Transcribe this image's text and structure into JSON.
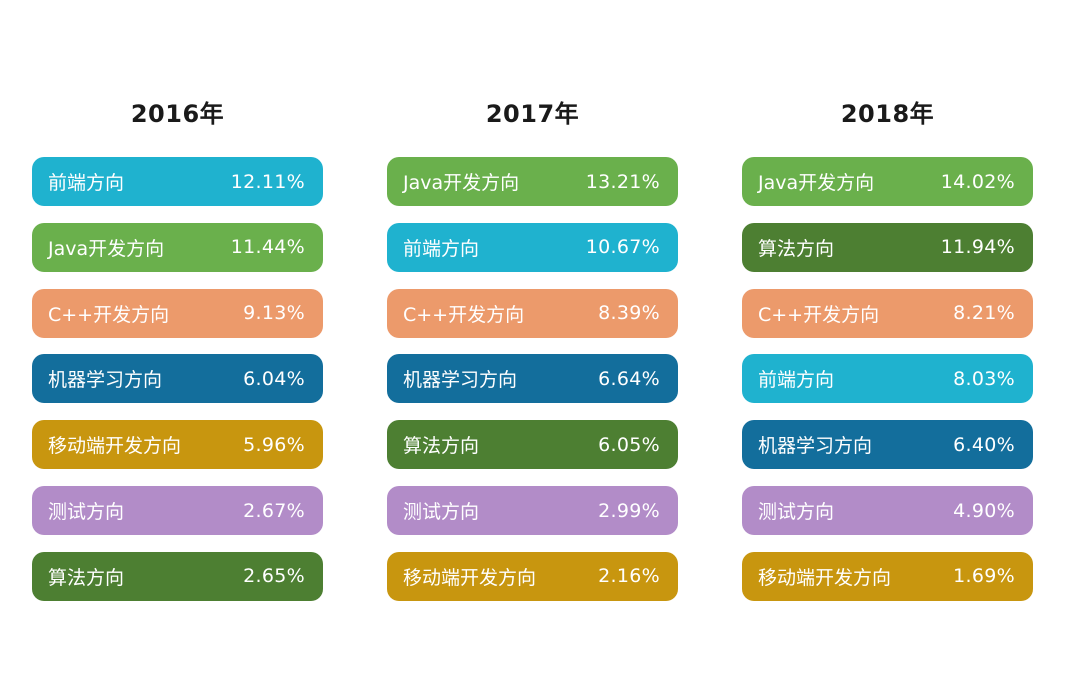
{
  "colors": {
    "前端方向": "#1fb2cf",
    "Java开发方向": "#6ab04c",
    "C++开发方向": "#ec9a6b",
    "机器学习方向": "#136e9c",
    "移动端开发方向": "#c8960f",
    "测试方向": "#b28cc8",
    "算法方向": "#4d7f32"
  },
  "chart_data": [
    {
      "type": "table",
      "title": "2016年",
      "rows": [
        {
          "label": "前端方向",
          "value": "12.11%"
        },
        {
          "label": "Java开发方向",
          "value": "11.44%"
        },
        {
          "label": "C++开发方向",
          "value": "9.13%"
        },
        {
          "label": "机器学习方向",
          "value": "6.04%"
        },
        {
          "label": "移动端开发方向",
          "value": "5.96%"
        },
        {
          "label": "测试方向",
          "value": "2.67%"
        },
        {
          "label": "算法方向",
          "value": "2.65%"
        }
      ]
    },
    {
      "type": "table",
      "title": "2017年",
      "rows": [
        {
          "label": "Java开发方向",
          "value": "13.21%"
        },
        {
          "label": "前端方向",
          "value": "10.67%"
        },
        {
          "label": "C++开发方向",
          "value": "8.39%"
        },
        {
          "label": "机器学习方向",
          "value": "6.64%"
        },
        {
          "label": "算法方向",
          "value": "6.05%"
        },
        {
          "label": "测试方向",
          "value": "2.99%"
        },
        {
          "label": "移动端开发方向",
          "value": "2.16%"
        }
      ]
    },
    {
      "type": "table",
      "title": "2018年",
      "rows": [
        {
          "label": "Java开发方向",
          "value": "14.02%"
        },
        {
          "label": "算法方向",
          "value": "11.94%"
        },
        {
          "label": "C++开发方向",
          "value": "8.21%"
        },
        {
          "label": "前端方向",
          "value": "8.03%"
        },
        {
          "label": "机器学习方向",
          "value": "6.40%"
        },
        {
          "label": "测试方向",
          "value": "4.90%"
        },
        {
          "label": "移动端开发方向",
          "value": "1.69%"
        }
      ]
    }
  ]
}
